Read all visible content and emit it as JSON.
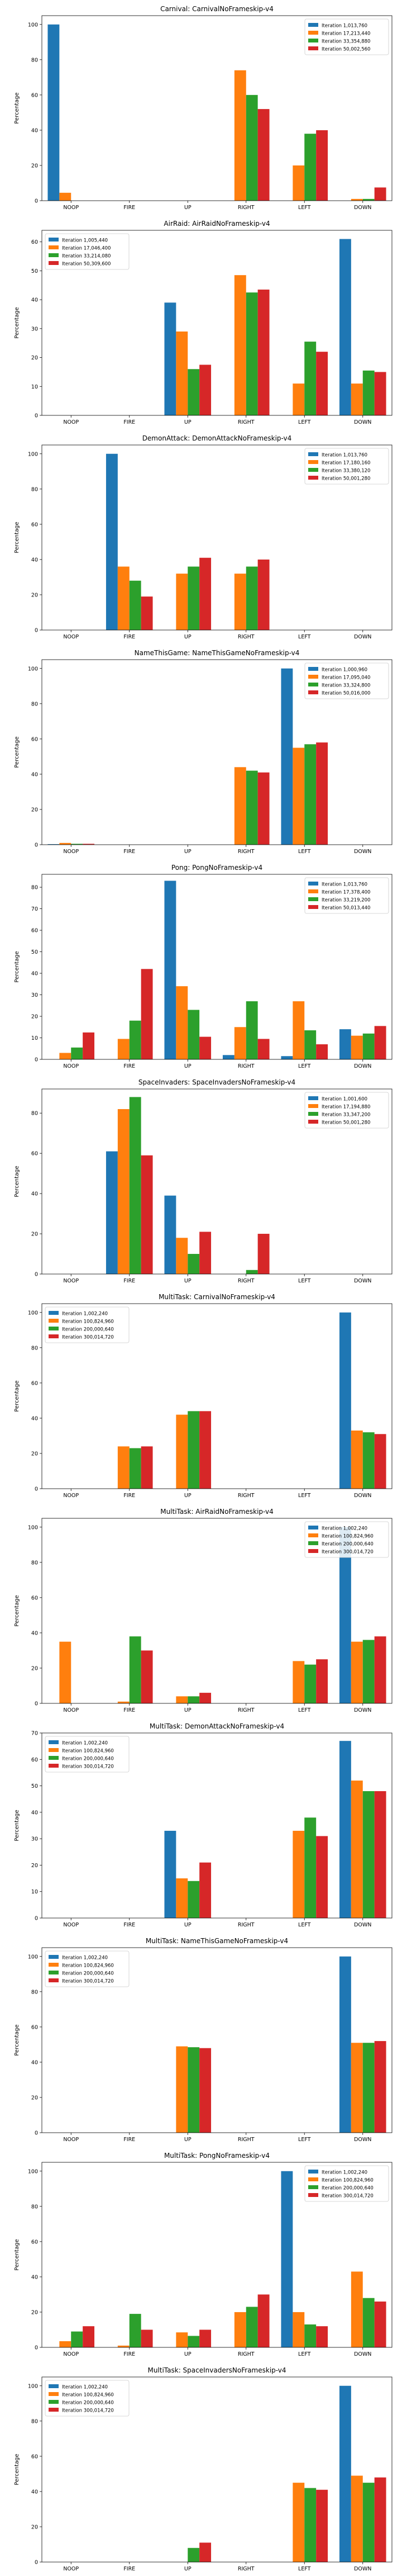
{
  "colors": {
    "series": [
      "#1f77b4",
      "#ff7f0e",
      "#2ca02c",
      "#d62728"
    ],
    "axis": "#000000",
    "background": "#ffffff"
  },
  "chart_data": [
    {
      "type": "bar",
      "title": "Carnival: CarnivalNoFrameskip-v4",
      "ylabel": "Percentage",
      "categories": [
        "NOOP",
        "FIRE",
        "UP",
        "RIGHT",
        "LEFT",
        "DOWN"
      ],
      "ylim": [
        0,
        105
      ],
      "yticks": [
        0,
        20,
        40,
        60,
        80,
        100
      ],
      "legend_position": "upper-right",
      "series": [
        {
          "name": "Iteration 1,013,760",
          "values": [
            100,
            0,
            0,
            0,
            0,
            0
          ]
        },
        {
          "name": "Iteration 17,213,440",
          "values": [
            4.5,
            0,
            0,
            74,
            20,
            1
          ]
        },
        {
          "name": "Iteration 33,354,880",
          "values": [
            0,
            0,
            0,
            60,
            38,
            1
          ]
        },
        {
          "name": "Iteration 50,002,560",
          "values": [
            0,
            0,
            0,
            52,
            40,
            7.5
          ]
        }
      ]
    },
    {
      "type": "bar",
      "title": "AirRaid: AirRaidNoFrameskip-v4",
      "ylabel": "Percentage",
      "categories": [
        "NOOP",
        "FIRE",
        "UP",
        "RIGHT",
        "LEFT",
        "DOWN"
      ],
      "ylim": [
        0,
        64
      ],
      "yticks": [
        0,
        10,
        20,
        30,
        40,
        50,
        60
      ],
      "legend_position": "upper-left",
      "series": [
        {
          "name": "Iteration 1,005,440",
          "values": [
            0,
            0,
            39,
            0,
            0,
            61
          ]
        },
        {
          "name": "Iteration 17,046,400",
          "values": [
            0,
            0,
            29,
            48.5,
            11,
            11
          ]
        },
        {
          "name": "Iteration 33,214,080",
          "values": [
            0,
            0,
            16,
            42.5,
            25.5,
            15.5
          ]
        },
        {
          "name": "Iteration 50,309,600",
          "values": [
            0,
            0,
            17.5,
            43.5,
            22,
            15
          ]
        }
      ]
    },
    {
      "type": "bar",
      "title": "DemonAttack: DemonAttackNoFrameskip-v4",
      "ylabel": "Percentage",
      "categories": [
        "NOOP",
        "FIRE",
        "UP",
        "RIGHT",
        "LEFT",
        "DOWN"
      ],
      "ylim": [
        0,
        105
      ],
      "yticks": [
        0,
        20,
        40,
        60,
        80,
        100
      ],
      "legend_position": "upper-right",
      "series": [
        {
          "name": "Iteration 1,013,760",
          "values": [
            0,
            100,
            0,
            0,
            0,
            0
          ]
        },
        {
          "name": "Iteration 17,180,160",
          "values": [
            0,
            36,
            32,
            32,
            0,
            0
          ]
        },
        {
          "name": "Iteration 33,380,120",
          "values": [
            0,
            28,
            36,
            36,
            0,
            0
          ]
        },
        {
          "name": "Iteration 50,001,280",
          "values": [
            0,
            19,
            41,
            40,
            0,
            0
          ]
        }
      ]
    },
    {
      "type": "bar",
      "title": "NameThisGame: NameThisGameNoFrameskip-v4",
      "ylabel": "Percentage",
      "categories": [
        "NOOP",
        "FIRE",
        "UP",
        "RIGHT",
        "LEFT",
        "DOWN"
      ],
      "ylim": [
        0,
        105
      ],
      "yticks": [
        0,
        20,
        40,
        60,
        80,
        100
      ],
      "legend_position": "upper-right",
      "series": [
        {
          "name": "Iteration 1,000,960",
          "values": [
            0.3,
            0,
            0,
            0,
            100,
            0
          ]
        },
        {
          "name": "Iteration 17,095,040",
          "values": [
            1,
            0,
            0,
            44,
            55,
            0
          ]
        },
        {
          "name": "Iteration 33,324,800",
          "values": [
            0.5,
            0,
            0,
            42,
            57,
            0
          ]
        },
        {
          "name": "Iteration 50,016,000",
          "values": [
            0.5,
            0,
            0,
            41,
            58,
            0
          ]
        }
      ]
    },
    {
      "type": "bar",
      "title": "Pong: PongNoFrameskip-v4",
      "ylabel": "Percentage",
      "categories": [
        "NOOP",
        "FIRE",
        "UP",
        "RIGHT",
        "LEFT",
        "DOWN"
      ],
      "ylim": [
        0,
        86
      ],
      "yticks": [
        0,
        10,
        20,
        30,
        40,
        50,
        60,
        70,
        80
      ],
      "legend_position": "upper-right",
      "series": [
        {
          "name": "Iteration 1,013,760",
          "values": [
            0,
            0,
            83,
            2,
            1.5,
            14
          ]
        },
        {
          "name": "Iteration 17,378,400",
          "values": [
            3,
            9.5,
            34,
            15,
            27,
            11
          ]
        },
        {
          "name": "Iteration 33,219,200",
          "values": [
            5.5,
            18,
            23,
            27,
            13.5,
            12
          ]
        },
        {
          "name": "Iteration 50,013,440",
          "values": [
            12.5,
            42,
            10.5,
            9.5,
            7,
            15.5
          ]
        }
      ]
    },
    {
      "type": "bar",
      "title": "SpaceInvaders: SpaceInvadersNoFrameskip-v4",
      "ylabel": "Percentage",
      "categories": [
        "NOOP",
        "FIRE",
        "UP",
        "RIGHT",
        "LEFT",
        "DOWN"
      ],
      "ylim": [
        0,
        92
      ],
      "yticks": [
        0,
        20,
        40,
        60,
        80
      ],
      "legend_position": "upper-right",
      "series": [
        {
          "name": "Iteration 1,001,600",
          "values": [
            0,
            61,
            39,
            0,
            0,
            0
          ]
        },
        {
          "name": "Iteration 17,194,880",
          "values": [
            0,
            82,
            18,
            0,
            0,
            0
          ]
        },
        {
          "name": "Iteration 33,347,200",
          "values": [
            0,
            88,
            10,
            2,
            0,
            0
          ]
        },
        {
          "name": "Iteration 50,001,280",
          "values": [
            0,
            59,
            21,
            20,
            0,
            0
          ]
        }
      ]
    },
    {
      "type": "bar",
      "title": "MultiTask: CarnivalNoFrameskip-v4",
      "ylabel": "Percentage",
      "categories": [
        "NOOP",
        "FIRE",
        "UP",
        "RIGHT",
        "LEFT",
        "DOWN"
      ],
      "ylim": [
        0,
        105
      ],
      "yticks": [
        0,
        20,
        40,
        60,
        80,
        100
      ],
      "legend_position": "upper-left",
      "series": [
        {
          "name": "Iteration 1,002,240",
          "values": [
            0,
            0,
            0,
            0,
            0,
            100
          ]
        },
        {
          "name": "Iteration 100,824,960",
          "values": [
            0,
            24,
            42,
            0,
            0,
            33
          ]
        },
        {
          "name": "Iteration 200,000,640",
          "values": [
            0,
            23,
            44,
            0,
            0,
            32
          ]
        },
        {
          "name": "Iteration 300,014,720",
          "values": [
            0,
            24,
            44,
            0,
            0,
            31
          ]
        }
      ]
    },
    {
      "type": "bar",
      "title": "MultiTask: AirRaidNoFrameskip-v4",
      "ylabel": "Percentage",
      "categories": [
        "NOOP",
        "FIRE",
        "UP",
        "RIGHT",
        "LEFT",
        "DOWN"
      ],
      "ylim": [
        0,
        105
      ],
      "yticks": [
        0,
        20,
        40,
        60,
        80,
        100
      ],
      "legend_position": "upper-right",
      "series": [
        {
          "name": "Iteration 1,002,240",
          "values": [
            0,
            0,
            0,
            0,
            0,
            100
          ]
        },
        {
          "name": "Iteration 100,824,960",
          "values": [
            35,
            1,
            4,
            0,
            24,
            35
          ]
        },
        {
          "name": "Iteration 200,000,640",
          "values": [
            0,
            38,
            4,
            0,
            22,
            36
          ]
        },
        {
          "name": "Iteration 300,014,720",
          "values": [
            0,
            30,
            6,
            0,
            25,
            38
          ]
        }
      ]
    },
    {
      "type": "bar",
      "title": "MultiTask: DemonAttackNoFrameskip-v4",
      "ylabel": "Percentage",
      "categories": [
        "NOOP",
        "FIRE",
        "UP",
        "RIGHT",
        "LEFT",
        "DOWN"
      ],
      "ylim": [
        0,
        70
      ],
      "yticks": [
        0,
        10,
        20,
        30,
        40,
        50,
        60,
        70
      ],
      "legend_position": "upper-left",
      "series": [
        {
          "name": "Iteration 1,002,240",
          "values": [
            0,
            0,
            33,
            0,
            0,
            67
          ]
        },
        {
          "name": "Iteration 100,824,960",
          "values": [
            0,
            0,
            15,
            0,
            33,
            52
          ]
        },
        {
          "name": "Iteration 200,000,640",
          "values": [
            0,
            0,
            14,
            0,
            38,
            48
          ]
        },
        {
          "name": "Iteration 300,014,720",
          "values": [
            0,
            0,
            21,
            0,
            31,
            48
          ]
        }
      ]
    },
    {
      "type": "bar",
      "title": "MultiTask: NameThisGameNoFrameskip-v4",
      "ylabel": "Percentage",
      "categories": [
        "NOOP",
        "FIRE",
        "UP",
        "RIGHT",
        "LEFT",
        "DOWN"
      ],
      "ylim": [
        0,
        105
      ],
      "yticks": [
        0,
        20,
        40,
        60,
        80,
        100
      ],
      "legend_position": "upper-left",
      "series": [
        {
          "name": "Iteration 1,002,240",
          "values": [
            0,
            0,
            0,
            0,
            0,
            100
          ]
        },
        {
          "name": "Iteration 100,824,960",
          "values": [
            0,
            0,
            49,
            0,
            0,
            51
          ]
        },
        {
          "name": "Iteration 200,000,640",
          "values": [
            0,
            0,
            48.5,
            0,
            0,
            51
          ]
        },
        {
          "name": "Iteration 300,014,720",
          "values": [
            0,
            0,
            48,
            0,
            0,
            52
          ]
        }
      ]
    },
    {
      "type": "bar",
      "title": "MultiTask: PongNoFrameskip-v4",
      "ylabel": "Percentage",
      "categories": [
        "NOOP",
        "FIRE",
        "UP",
        "RIGHT",
        "LEFT",
        "DOWN"
      ],
      "ylim": [
        0,
        105
      ],
      "yticks": [
        0,
        20,
        40,
        60,
        80,
        100
      ],
      "legend_position": "upper-right",
      "series": [
        {
          "name": "Iteration 1,002,240",
          "values": [
            0,
            0,
            0,
            0,
            100,
            0
          ]
        },
        {
          "name": "Iteration 100,824,960",
          "values": [
            3.5,
            1,
            8.5,
            20,
            20,
            43
          ]
        },
        {
          "name": "Iteration 200,000,640",
          "values": [
            9,
            19,
            6.5,
            23,
            13,
            28
          ]
        },
        {
          "name": "Iteration 300,014,720",
          "values": [
            12,
            10,
            10,
            30,
            12,
            26
          ]
        }
      ]
    },
    {
      "type": "bar",
      "title": "MultiTask: SpaceInvadersNoFrameskip-v4",
      "ylabel": "Percentage",
      "categories": [
        "NOOP",
        "FIRE",
        "UP",
        "RIGHT",
        "LEFT",
        "DOWN"
      ],
      "ylim": [
        0,
        105
      ],
      "yticks": [
        0,
        20,
        40,
        60,
        80,
        100
      ],
      "legend_position": "upper-left",
      "series": [
        {
          "name": "Iteration 1,002,240",
          "values": [
            0,
            0,
            0,
            0,
            0,
            100
          ]
        },
        {
          "name": "Iteration 100,824,960",
          "values": [
            0,
            0,
            0,
            0,
            45,
            49
          ]
        },
        {
          "name": "Iteration 200,000,640",
          "values": [
            0,
            0,
            8,
            0,
            42,
            45
          ]
        },
        {
          "name": "Iteration 300,014,720",
          "values": [
            0,
            0,
            11,
            0,
            41,
            48
          ]
        }
      ]
    }
  ]
}
